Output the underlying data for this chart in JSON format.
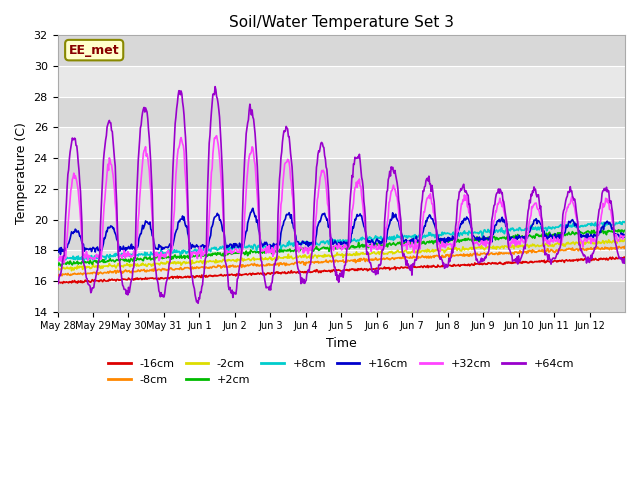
{
  "title": "Soil/Water Temperature Set 3",
  "xlabel": "Time",
  "ylabel": "Temperature (C)",
  "ylim": [
    14,
    32
  ],
  "yticks": [
    14,
    16,
    18,
    20,
    22,
    24,
    26,
    28,
    30,
    32
  ],
  "background_color": "#ffffff",
  "plot_bg_color": "#e8e8e8",
  "grid_color": "#ffffff",
  "series": {
    "-16cm": {
      "color": "#dd0000",
      "lw": 1.2
    },
    "-8cm": {
      "color": "#ff8800",
      "lw": 1.2
    },
    "-2cm": {
      "color": "#dddd00",
      "lw": 1.2
    },
    "+2cm": {
      "color": "#00bb00",
      "lw": 1.2
    },
    "+8cm": {
      "color": "#00cccc",
      "lw": 1.2
    },
    "+16cm": {
      "color": "#0000cc",
      "lw": 1.2
    },
    "+32cm": {
      "color": "#ff44ff",
      "lw": 1.2
    },
    "+64cm": {
      "color": "#9900cc",
      "lw": 1.2
    }
  },
  "legend_order": [
    "-16cm",
    "-8cm",
    "-2cm",
    "+2cm",
    "+8cm",
    "+16cm",
    "+32cm",
    "+64cm"
  ],
  "watermark": "EE_met",
  "n_days": 16,
  "tick_labels": [
    "May 28",
    "May 29",
    "May 30",
    "May 31",
    "Jun 1",
    "Jun 2",
    "Jun 3",
    "Jun 4",
    "Jun 5",
    "Jun 6",
    "Jun 7",
    "Jun 8",
    "Jun 9",
    "Jun 10",
    "Jun 11",
    "Jun 12"
  ]
}
